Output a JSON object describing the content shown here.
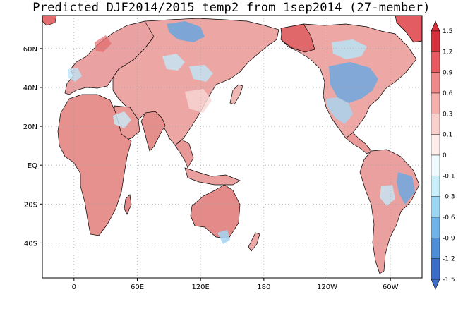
{
  "title": "Predicted DJF2014/2015 temp2 from 1sep2014 (27-member)",
  "map": {
    "projection": "cylindrical equidistant, Pacific-centred",
    "lon_range": [
      -30,
      330
    ],
    "lat_range": [
      -58,
      77
    ],
    "grid_lines": "dotted",
    "lat_ticks": [
      {
        "lat": 60,
        "label": "60N"
      },
      {
        "lat": 40,
        "label": "40N"
      },
      {
        "lat": 20,
        "label": "20N"
      },
      {
        "lat": 0,
        "label": "EQ"
      },
      {
        "lat": -20,
        "label": "20S"
      },
      {
        "lat": -40,
        "label": "40S"
      }
    ],
    "lon_ticks": [
      {
        "lon": 0,
        "label": "0"
      },
      {
        "lon": 60,
        "label": "60E"
      },
      {
        "lon": 120,
        "label": "120E"
      },
      {
        "lon": 180,
        "label": "180"
      },
      {
        "lon": 240,
        "label": "120W"
      },
      {
        "lon": 300,
        "label": "60W"
      }
    ],
    "land_default_color": "#e8a0a0",
    "ocean_color": "#ffffff"
  },
  "colorbar": {
    "labels": [
      "1.5",
      "1.2",
      "0.9",
      "0.6",
      "0.3",
      "0.1",
      "0",
      "-0.1",
      "-0.3",
      "-0.6",
      "-0.9",
      "-1.2",
      "-1.5"
    ],
    "colors": [
      "#d6303d",
      "#e85a5f",
      "#f08a8a",
      "#f5b0ad",
      "#f9d0cc",
      "#fdecea",
      "#eefafd",
      "#c9f0fa",
      "#9dd6f2",
      "#6eb4ea",
      "#4e8ed8",
      "#3a6cc8"
    ],
    "orientation": "vertical",
    "position": "right"
  },
  "anomaly_regions": [
    {
      "name": "north-america-cold",
      "value": -0.6
    },
    {
      "name": "northwest-siberia-cold",
      "value": -0.6
    },
    {
      "name": "east-brazil-cold",
      "value": -0.6
    },
    {
      "name": "alaska-warm",
      "value": 1.2
    },
    {
      "name": "greenland-warm",
      "value": 1.2
    },
    {
      "name": "mongolia-cold",
      "value": -0.3
    },
    {
      "name": "china-mixed",
      "value": 0.1
    },
    {
      "name": "arctic-canada-cold",
      "value": -0.3
    },
    {
      "name": "australia-warm",
      "value": 0.6
    },
    {
      "name": "africa-warm",
      "value": 0.6
    }
  ]
}
